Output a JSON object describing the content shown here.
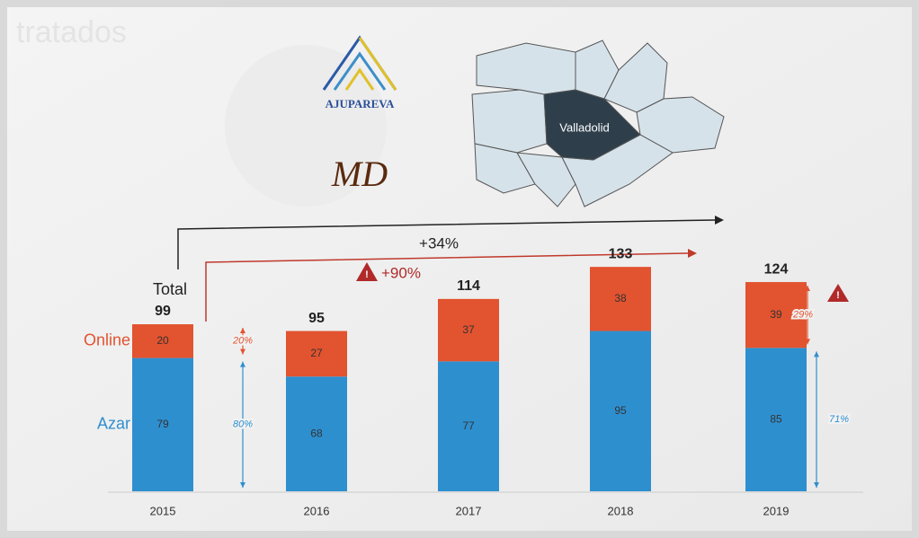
{
  "header": {
    "faint_title": "tratados",
    "logo_text": "AJUPAREVA",
    "logo_monogram": "MD",
    "map_label": "Valladolid"
  },
  "chart_data": {
    "type": "bar",
    "stacked": true,
    "categories": [
      "2015",
      "2016",
      "2017",
      "2018",
      "2019"
    ],
    "series": [
      {
        "name": "Azar",
        "color": "#2e8fcf",
        "values": [
          79,
          68,
          77,
          95,
          85
        ]
      },
      {
        "name": "Online",
        "color": "#e2532f",
        "values": [
          20,
          27,
          37,
          38,
          39
        ]
      }
    ],
    "totals": [
      99,
      95,
      114,
      133,
      124
    ],
    "ylim": [
      0,
      140
    ],
    "annotations": {
      "total": "Total",
      "growth_total": "+34%",
      "growth_online": "+90%",
      "share_first_online": "20%",
      "share_first_azar": "80%",
      "share_last_online": "29%",
      "share_last_azar": "71%"
    }
  }
}
